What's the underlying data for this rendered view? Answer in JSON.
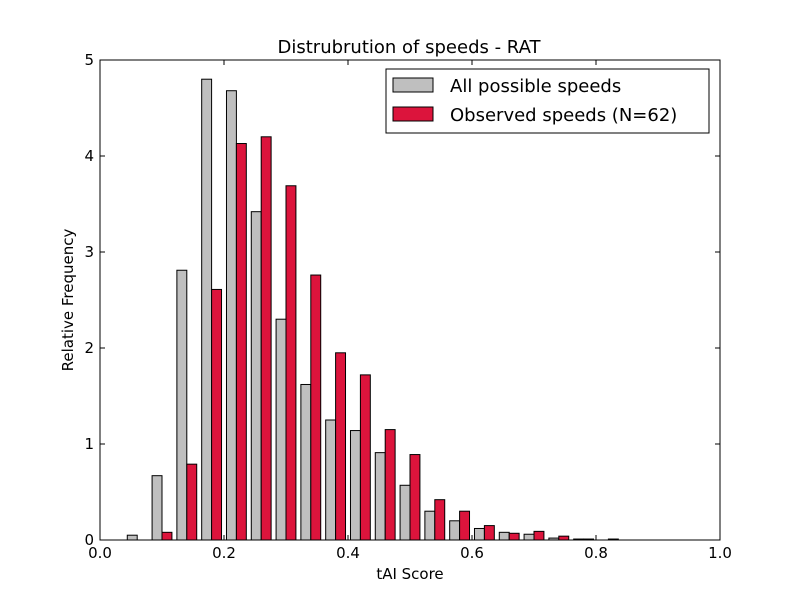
{
  "chart_data": {
    "type": "bar",
    "title": "Distrubrution of speeds - RAT",
    "xlabel": "tAI Score",
    "ylabel": "Relative Frequency",
    "xlim": [
      0.0,
      1.0
    ],
    "ylim": [
      0,
      5
    ],
    "x_ticks": [
      "0.0",
      "0.2",
      "0.4",
      "0.6",
      "0.8",
      "1.0"
    ],
    "y_ticks": [
      "0",
      "1",
      "2",
      "3",
      "4",
      "5"
    ],
    "bin_width": 0.04,
    "bin_starts": [
      0.04,
      0.08,
      0.12,
      0.16,
      0.2,
      0.24,
      0.28,
      0.32,
      0.36,
      0.4,
      0.44,
      0.48,
      0.52,
      0.56,
      0.6,
      0.64,
      0.68,
      0.72,
      0.76,
      0.8,
      0.84,
      0.88,
      0.92,
      0.96
    ],
    "legend_position": "upper-right",
    "grid": false,
    "series": [
      {
        "name": "All possible speeds",
        "color": "#bfbfbf",
        "values": [
          0.05,
          0.67,
          2.81,
          4.8,
          4.68,
          3.42,
          2.3,
          1.62,
          1.25,
          1.14,
          0.91,
          0.57,
          0.3,
          0.2,
          0.12,
          0.08,
          0.06,
          0.02,
          0.01,
          0.0,
          0.0,
          0.0,
          0.0,
          0.0
        ]
      },
      {
        "name": "Observed speeds (N=62)",
        "color": "#dc143c",
        "values": [
          0.0,
          0.08,
          0.79,
          2.61,
          4.13,
          4.2,
          3.69,
          2.76,
          1.95,
          1.72,
          1.15,
          0.89,
          0.42,
          0.3,
          0.15,
          0.07,
          0.09,
          0.04,
          0.01,
          0.01,
          0.0,
          0.0,
          0.0,
          0.0
        ]
      }
    ]
  }
}
